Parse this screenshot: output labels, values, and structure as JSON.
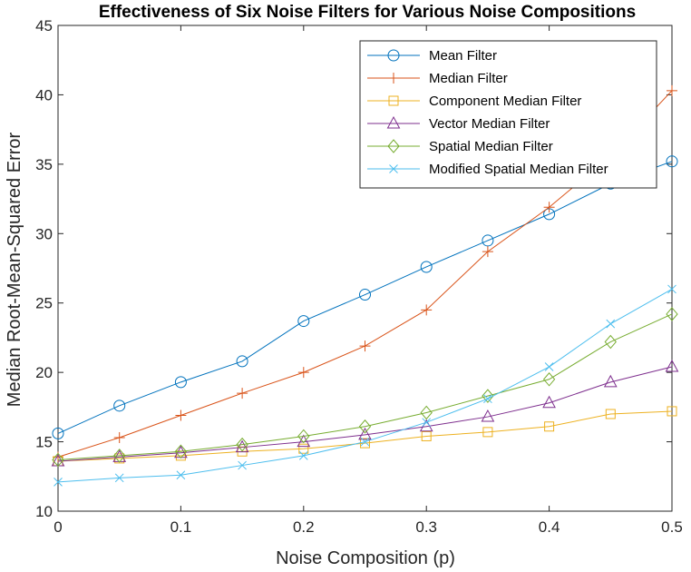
{
  "chart_data": {
    "type": "line",
    "title": "Effectiveness of Six Noise Filters for Various Noise Compositions",
    "xlabel": "Noise Composition (p)",
    "ylabel": "Median Root-Mean-Squared Error",
    "xlim": [
      0,
      0.5
    ],
    "ylim": [
      10,
      45
    ],
    "xticks": [
      "0",
      "0.1",
      "0.2",
      "0.3",
      "0.4",
      "0.5"
    ],
    "yticks": [
      "10",
      "15",
      "20",
      "25",
      "30",
      "35",
      "40",
      "45"
    ],
    "grid": false,
    "legend_position": "top-right",
    "x": [
      0,
      0.05,
      0.1,
      0.15,
      0.2,
      0.25,
      0.3,
      0.35,
      0.4,
      0.45,
      0.5
    ],
    "series": [
      {
        "name": "Mean Filter",
        "color": "#0072BD",
        "marker": "circle",
        "values": [
          15.6,
          17.6,
          19.3,
          20.8,
          23.7,
          25.6,
          27.6,
          29.5,
          31.4,
          33.6,
          35.2
        ]
      },
      {
        "name": "Median Filter",
        "color": "#D95319",
        "marker": "plus",
        "values": [
          13.9,
          15.3,
          16.9,
          18.5,
          20.0,
          21.9,
          24.5,
          28.7,
          31.9,
          35.6,
          40.3
        ]
      },
      {
        "name": "Component Median Filter",
        "color": "#EDB120",
        "marker": "square",
        "values": [
          13.6,
          13.8,
          14.0,
          14.3,
          14.5,
          14.9,
          15.4,
          15.7,
          16.1,
          17.0,
          17.2
        ]
      },
      {
        "name": "Vector Median Filter",
        "color": "#7E2F8E",
        "marker": "triangle",
        "values": [
          13.6,
          13.9,
          14.2,
          14.6,
          15.0,
          15.5,
          16.1,
          16.8,
          17.8,
          19.3,
          20.4
        ]
      },
      {
        "name": "Spatial Median Filter",
        "color": "#77AC30",
        "marker": "diamond",
        "values": [
          13.7,
          14.0,
          14.3,
          14.8,
          15.4,
          16.1,
          17.1,
          18.3,
          19.5,
          22.2,
          24.2
        ]
      },
      {
        "name": "Modified Spatial Median Filter",
        "color": "#4DBEEE",
        "marker": "x",
        "values": [
          12.1,
          12.4,
          12.6,
          13.3,
          14.0,
          15.0,
          16.4,
          18.1,
          20.4,
          23.5,
          26.0
        ]
      }
    ]
  }
}
